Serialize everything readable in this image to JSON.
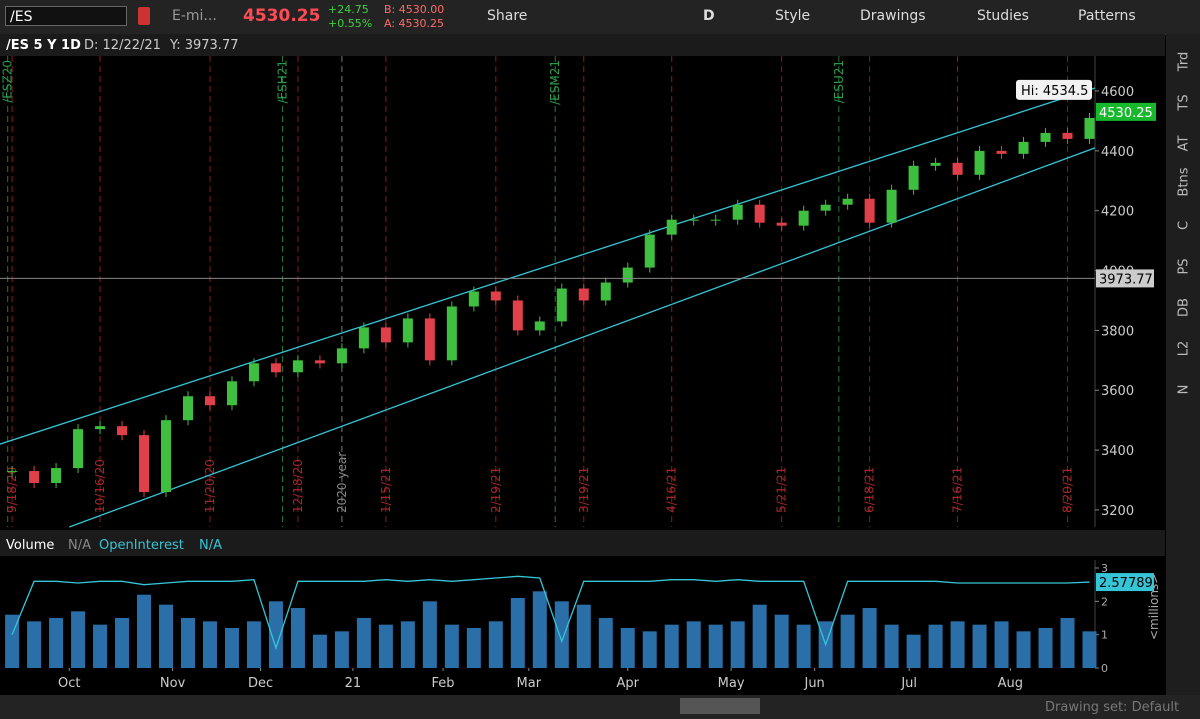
{
  "toolbar": {
    "symbol": "/ES",
    "description": "E-mi...",
    "last": "4530.25",
    "change": "+24.75",
    "change_pct": "+0.55%",
    "bid": "B: 4530.00",
    "ask": "A: 4530.25",
    "share": "Share",
    "period": "D",
    "style": "Style",
    "drawings": "Drawings",
    "studies": "Studies",
    "patterns": "Patterns"
  },
  "header": {
    "title": "/ES 5 Y 1D",
    "date": "D: 12/22/21",
    "price": "Y: 3973.77"
  },
  "side_tabs": [
    "Trd",
    "TS",
    "AT",
    "Btns",
    "C",
    "PS",
    "DB",
    "L2",
    "N"
  ],
  "footer": {
    "drawing_set": "Drawing set: Default"
  },
  "chart_data": [
    {
      "type": "candlestick",
      "up_color": "#3fbf3f",
      "down_color": "#e0404a",
      "series": [
        {
          "values": [
            3330,
            3290,
            3340,
            3470,
            3480,
            3450,
            3260,
            3500,
            3580,
            3550,
            3630,
            3690,
            3660,
            3700,
            3690,
            3740,
            3810,
            3760,
            3840,
            3700,
            3880,
            3930,
            3900,
            3800,
            3830,
            3940,
            3900,
            3960,
            4010,
            4120,
            4170,
            4170,
            4170,
            4220,
            4160,
            4150,
            4200,
            4220,
            4240,
            4160,
            4270,
            4350,
            4360,
            4320,
            4400,
            4390,
            4430,
            4460,
            4440,
            4510
          ]
        }
      ],
      "xlim": [
        -0.55,
        49.25
      ],
      "ylim": [
        3143,
        4717
      ],
      "yticks": [
        3200,
        3400,
        3600,
        3800,
        4000,
        4200,
        4400,
        4600
      ],
      "expirations": [
        {
          "value": 0,
          "label": "9/18/20"
        },
        {
          "value": 4,
          "label": "10/16/20"
        },
        {
          "value": 9,
          "label": "11/20/20"
        },
        {
          "value": 13,
          "label": "12/18/20"
        },
        {
          "value": 17,
          "label": "1/15/21"
        },
        {
          "value": 22,
          "label": "2/19/21"
        },
        {
          "value": 26,
          "label": "3/19/21"
        },
        {
          "value": 30,
          "label": "4/16/21"
        },
        {
          "value": 35,
          "label": "5/21/21"
        },
        {
          "value": 39,
          "label": "6/18/21"
        },
        {
          "value": 43,
          "label": "7/16/21"
        },
        {
          "value": 48,
          "label": "8/20/21"
        }
      ],
      "contracts": [
        {
          "value": -0.2,
          "label": "/ESZ20"
        },
        {
          "value": 12.3,
          "label": "/ESH21"
        },
        {
          "value": 24.7,
          "label": "/ESM21"
        },
        {
          "value": 37.6,
          "label": "/ESU21"
        }
      ],
      "year_marker": {
        "value": 15,
        "label": "2020 year"
      },
      "channel": {
        "color": "#36c5d6",
        "upper": [
          [
            -0.55,
            3420
          ],
          [
            49.25,
            4610
          ]
        ],
        "lower": [
          [
            2.6,
            3143
          ],
          [
            49.25,
            4410
          ]
        ]
      },
      "last_price": 4530.25,
      "crosshair": 3973.77,
      "high_label": "Hi: 4534.5"
    },
    {
      "type": "bar",
      "xlim": [
        -0.55,
        49.25
      ],
      "ylim": [
        0,
        3.24
      ],
      "yticks": [
        0,
        1,
        2,
        3
      ],
      "axis_label": "<millions>",
      "xticks": [
        {
          "value": 2.6,
          "label": "Oct"
        },
        {
          "value": 7.3,
          "label": "Nov"
        },
        {
          "value": 11.3,
          "label": "Dec"
        },
        {
          "value": 15.5,
          "label": "21"
        },
        {
          "value": 19.6,
          "label": "Feb"
        },
        {
          "value": 23.5,
          "label": "Mar"
        },
        {
          "value": 28,
          "label": "Apr"
        },
        {
          "value": 32.7,
          "label": "May"
        },
        {
          "value": 36.5,
          "label": "Jun"
        },
        {
          "value": 40.8,
          "label": "Jul"
        },
        {
          "value": 45.4,
          "label": "Aug"
        }
      ],
      "legend_values": [
        "N/A",
        "N/A"
      ],
      "series": [
        {
          "name": "Volume",
          "color": "#2a6fa8",
          "values": [
            1.6,
            1.4,
            1.5,
            1.7,
            1.3,
            1.5,
            2.2,
            1.9,
            1.5,
            1.4,
            1.2,
            1.4,
            2.0,
            1.8,
            1.0,
            1.1,
            1.5,
            1.3,
            1.4,
            2.0,
            1.3,
            1.2,
            1.4,
            2.1,
            2.3,
            2.0,
            1.9,
            1.5,
            1.2,
            1.1,
            1.3,
            1.4,
            1.3,
            1.4,
            1.9,
            1.6,
            1.3,
            1.4,
            1.6,
            1.8,
            1.3,
            1.0,
            1.3,
            1.4,
            1.3,
            1.4,
            1.1,
            1.2,
            1.5,
            1.1
          ]
        },
        {
          "name": "OpenInterest",
          "color": "#36c5d6",
          "values": [
            1.0,
            2.6,
            2.6,
            2.55,
            2.6,
            2.6,
            2.5,
            2.55,
            2.6,
            2.6,
            2.6,
            2.65,
            0.6,
            2.6,
            2.6,
            2.6,
            2.6,
            2.65,
            2.6,
            2.65,
            2.6,
            2.65,
            2.7,
            2.75,
            2.7,
            0.8,
            2.6,
            2.6,
            2.6,
            2.6,
            2.65,
            2.65,
            2.6,
            2.65,
            2.6,
            2.6,
            2.6,
            0.7,
            2.6,
            2.6,
            2.6,
            2.6,
            2.6,
            2.55,
            2.55,
            2.55,
            2.55,
            2.55,
            2.55,
            2.57789
          ]
        }
      ]
    }
  ]
}
